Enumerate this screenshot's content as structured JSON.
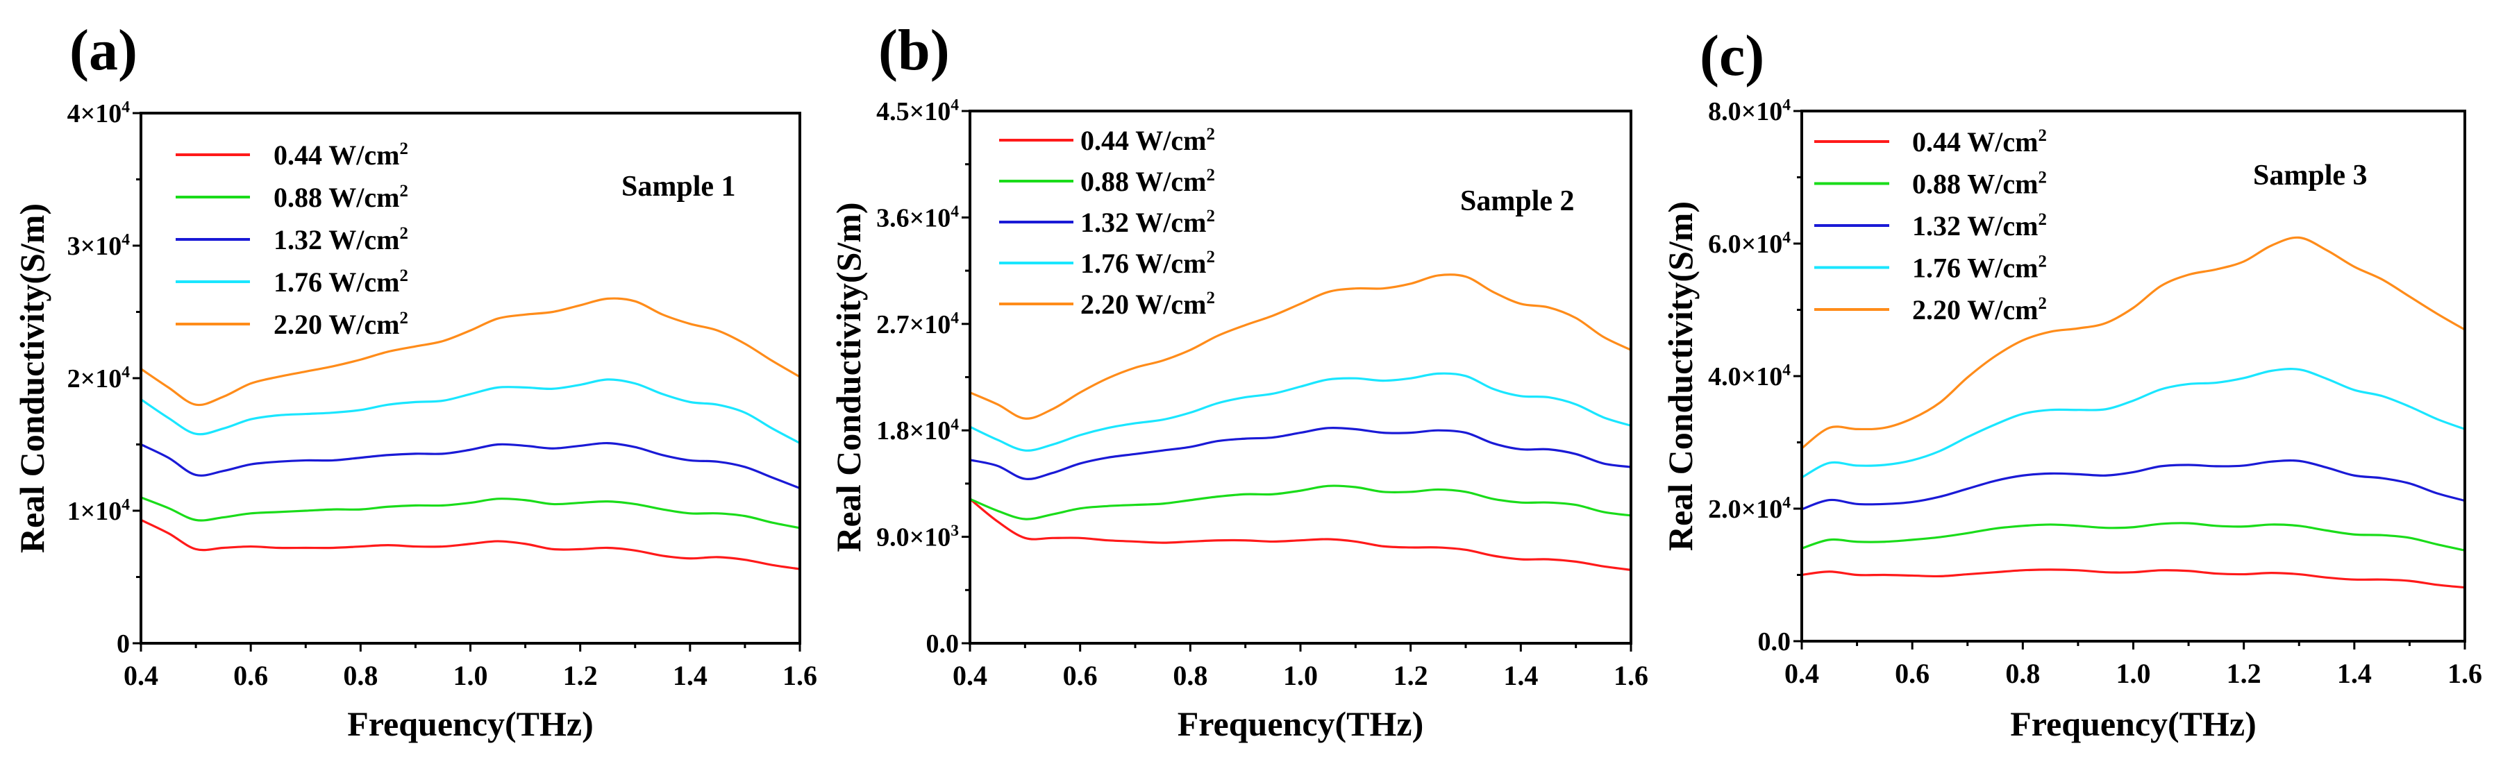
{
  "chart_data": [
    {
      "type": "line",
      "panel_label": "(a)",
      "annotation": "Sample 1",
      "xlabel": "Frequency(THz)",
      "ylabel": "Real Conductivity(S/m)",
      "xlim": [
        0.4,
        1.6
      ],
      "ylim": [
        0,
        40000
      ],
      "xticks": [
        "0.4",
        "0.6",
        "0.8",
        "1.0",
        "1.2",
        "1.4",
        "1.6"
      ],
      "yticks": [
        {
          "v": 0,
          "t": "0",
          "s": ""
        },
        {
          "v": 10000,
          "t": "1×10",
          "s": "4"
        },
        {
          "v": 20000,
          "t": "2×10",
          "s": "4"
        },
        {
          "v": 30000,
          "t": "3×10",
          "s": "4"
        },
        {
          "v": 40000,
          "t": "4×10",
          "s": "4"
        }
      ],
      "legend_position": "top-left",
      "x": [
        0.4,
        0.45,
        0.5,
        0.55,
        0.6,
        0.65,
        0.7,
        0.75,
        0.8,
        0.85,
        0.9,
        0.95,
        1.0,
        1.05,
        1.1,
        1.15,
        1.2,
        1.25,
        1.3,
        1.35,
        1.4,
        1.45,
        1.5,
        1.55,
        1.6
      ],
      "series": [
        {
          "name": "0.44 W/cm",
          "sup": "2",
          "color": "#ff1a1a",
          "values": [
            9300,
            8300,
            7100,
            7200,
            7300,
            7200,
            7200,
            7200,
            7300,
            7400,
            7300,
            7300,
            7500,
            7700,
            7500,
            7100,
            7100,
            7200,
            7000,
            6600,
            6400,
            6500,
            6300,
            5900,
            5600
          ]
        },
        {
          "name": "0.88 W/cm",
          "sup": "2",
          "color": "#1adc1a",
          "values": [
            11000,
            10200,
            9300,
            9500,
            9800,
            9900,
            10000,
            10100,
            10100,
            10300,
            10400,
            10400,
            10600,
            10900,
            10800,
            10500,
            10600,
            10700,
            10500,
            10100,
            9800,
            9800,
            9600,
            9100,
            8700
          ]
        },
        {
          "name": "1.32 W/cm",
          "sup": "2",
          "color": "#1a1ad6",
          "values": [
            15000,
            14000,
            12700,
            13000,
            13500,
            13700,
            13800,
            13800,
            14000,
            14200,
            14300,
            14300,
            14600,
            15000,
            14900,
            14700,
            14900,
            15100,
            14800,
            14200,
            13800,
            13700,
            13300,
            12500,
            11700
          ]
        },
        {
          "name": "1.76 W/cm",
          "sup": "2",
          "color": "#1ae6ff",
          "values": [
            18400,
            17000,
            15800,
            16200,
            16900,
            17200,
            17300,
            17400,
            17600,
            18000,
            18200,
            18300,
            18800,
            19300,
            19300,
            19200,
            19500,
            19900,
            19600,
            18800,
            18200,
            18000,
            17400,
            16200,
            15100
          ]
        },
        {
          "name": "2.20 W/cm",
          "sup": "2",
          "color": "#ff8c1a",
          "values": [
            20700,
            19300,
            18000,
            18600,
            19600,
            20100,
            20500,
            20900,
            21400,
            22000,
            22400,
            22800,
            23600,
            24500,
            24800,
            25000,
            25500,
            26000,
            25800,
            24800,
            24100,
            23600,
            22600,
            21300,
            20100
          ]
        }
      ]
    },
    {
      "type": "line",
      "panel_label": "(b)",
      "annotation": "Sample 2",
      "xlabel": "Frequency(THz)",
      "ylabel": "Real Conductivity(S/m)",
      "xlim": [
        0.4,
        1.6
      ],
      "ylim": [
        0,
        45000
      ],
      "xticks": [
        "0.4",
        "0.6",
        "0.8",
        "1.0",
        "1.2",
        "1.4",
        "1.6"
      ],
      "yticks": [
        {
          "v": 0,
          "t": "0.0",
          "s": ""
        },
        {
          "v": 9000,
          "t": "9.0×10",
          "s": "3"
        },
        {
          "v": 18000,
          "t": "1.8×10",
          "s": "4"
        },
        {
          "v": 27000,
          "t": "2.7×10",
          "s": "4"
        },
        {
          "v": 36000,
          "t": "3.6×10",
          "s": "4"
        },
        {
          "v": 45000,
          "t": "4.5×10",
          "s": "4"
        }
      ],
      "legend_position": "top-left",
      "x": [
        0.4,
        0.45,
        0.5,
        0.55,
        0.6,
        0.65,
        0.7,
        0.75,
        0.8,
        0.85,
        0.9,
        0.95,
        1.0,
        1.05,
        1.1,
        1.15,
        1.2,
        1.25,
        1.3,
        1.35,
        1.4,
        1.45,
        1.5,
        1.55,
        1.6
      ],
      "series": [
        {
          "name": "0.44 W/cm",
          "sup": "2",
          "color": "#ff1a1a",
          "values": [
            12200,
            10300,
            8900,
            8900,
            8900,
            8700,
            8600,
            8500,
            8600,
            8700,
            8700,
            8600,
            8700,
            8800,
            8600,
            8200,
            8100,
            8100,
            7900,
            7400,
            7100,
            7100,
            6900,
            6500,
            6200
          ]
        },
        {
          "name": "0.88 W/cm",
          "sup": "2",
          "color": "#1adc1a",
          "values": [
            12200,
            11200,
            10500,
            10900,
            11400,
            11600,
            11700,
            11800,
            12100,
            12400,
            12600,
            12600,
            12900,
            13300,
            13200,
            12800,
            12800,
            13000,
            12800,
            12200,
            11900,
            11900,
            11700,
            11100,
            10800
          ]
        },
        {
          "name": "1.32 W/cm",
          "sup": "2",
          "color": "#1a1ad6",
          "values": [
            15500,
            15000,
            13900,
            14400,
            15200,
            15700,
            16000,
            16300,
            16600,
            17100,
            17300,
            17400,
            17800,
            18200,
            18100,
            17800,
            17800,
            18000,
            17800,
            16900,
            16400,
            16400,
            16000,
            15200,
            14900
          ]
        },
        {
          "name": "1.76 W/cm",
          "sup": "2",
          "color": "#1ae6ff",
          "values": [
            18300,
            17200,
            16300,
            16800,
            17600,
            18200,
            18600,
            18900,
            19500,
            20300,
            20800,
            21100,
            21700,
            22300,
            22400,
            22200,
            22400,
            22800,
            22600,
            21500,
            20900,
            20800,
            20200,
            19100,
            18400
          ]
        },
        {
          "name": "2.20 W/cm",
          "sup": "2",
          "color": "#ff8c1a",
          "values": [
            21200,
            20200,
            19000,
            19800,
            21200,
            22400,
            23300,
            23900,
            24800,
            26000,
            26900,
            27700,
            28700,
            29700,
            30000,
            30000,
            30400,
            31100,
            31000,
            29700,
            28700,
            28400,
            27500,
            25900,
            24800
          ]
        }
      ]
    },
    {
      "type": "line",
      "panel_label": "(c)",
      "annotation": "Sample 3",
      "xlabel": "Frequency(THz)",
      "ylabel": "Real Conductivity(S/m)",
      "xlim": [
        0.4,
        1.6
      ],
      "ylim": [
        0,
        80000
      ],
      "xticks": [
        "0.4",
        "0.6",
        "0.8",
        "1.0",
        "1.2",
        "1.4",
        "1.6"
      ],
      "yticks": [
        {
          "v": 0,
          "t": "0.0",
          "s": ""
        },
        {
          "v": 20000,
          "t": "2.0×10",
          "s": "4"
        },
        {
          "v": 40000,
          "t": "4.0×10",
          "s": "4"
        },
        {
          "v": 60000,
          "t": "6.0×10",
          "s": "4"
        },
        {
          "v": 80000,
          "t": "8.0×10",
          "s": "4"
        }
      ],
      "legend_position": "top-left",
      "x": [
        0.4,
        0.45,
        0.5,
        0.55,
        0.6,
        0.65,
        0.7,
        0.75,
        0.8,
        0.85,
        0.9,
        0.95,
        1.0,
        1.05,
        1.1,
        1.15,
        1.2,
        1.25,
        1.3,
        1.35,
        1.4,
        1.45,
        1.5,
        1.55,
        1.6
      ],
      "series": [
        {
          "name": "0.44 W/cm",
          "sup": "2",
          "color": "#ff1a1a",
          "values": [
            10000,
            10500,
            10000,
            10000,
            9900,
            9800,
            10100,
            10400,
            10700,
            10800,
            10700,
            10400,
            10400,
            10700,
            10600,
            10200,
            10100,
            10300,
            10100,
            9600,
            9300,
            9300,
            9100,
            8500,
            8100
          ]
        },
        {
          "name": "0.88 W/cm",
          "sup": "2",
          "color": "#1adc1a",
          "values": [
            14000,
            15300,
            15000,
            15000,
            15300,
            15700,
            16300,
            17000,
            17400,
            17600,
            17400,
            17100,
            17200,
            17700,
            17800,
            17400,
            17300,
            17600,
            17400,
            16700,
            16100,
            16000,
            15600,
            14600,
            13700
          ]
        },
        {
          "name": "1.32 W/cm",
          "sup": "2",
          "color": "#1a1ad6",
          "values": [
            19900,
            21300,
            20700,
            20700,
            21000,
            21800,
            23000,
            24200,
            25000,
            25300,
            25200,
            25000,
            25500,
            26400,
            26600,
            26400,
            26500,
            27100,
            27200,
            26200,
            25000,
            24600,
            23800,
            22300,
            21200
          ]
        },
        {
          "name": "1.76 W/cm",
          "sup": "2",
          "color": "#1ae6ff",
          "values": [
            24700,
            26900,
            26500,
            26600,
            27300,
            28700,
            30800,
            32700,
            34300,
            34900,
            34900,
            35000,
            36300,
            38000,
            38800,
            39000,
            39700,
            40800,
            41000,
            39600,
            37900,
            37000,
            35400,
            33500,
            32000
          ]
        },
        {
          "name": "2.20 W/cm",
          "sup": "2",
          "color": "#ff8c1a",
          "values": [
            29100,
            32200,
            32000,
            32200,
            33600,
            36000,
            39800,
            43000,
            45400,
            46700,
            47200,
            48000,
            50300,
            53600,
            55300,
            56100,
            57300,
            59700,
            60900,
            59000,
            56500,
            54600,
            52000,
            49400,
            47000
          ]
        }
      ]
    }
  ]
}
